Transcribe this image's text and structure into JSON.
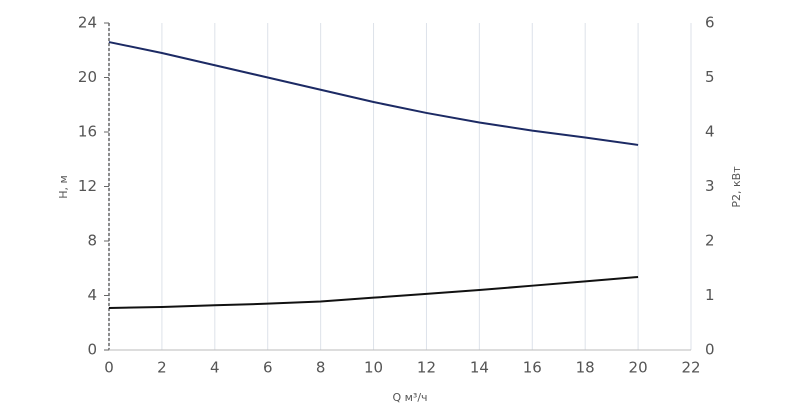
{
  "chart_data": {
    "type": "line",
    "x": [
      0,
      2,
      4,
      6,
      8,
      10,
      12,
      14,
      16,
      18,
      20
    ],
    "series": [
      {
        "name": "H",
        "color": "#1c2a64",
        "values": [
          22.6,
          21.8,
          20.9,
          20.0,
          19.1,
          18.2,
          17.4,
          16.7,
          16.1,
          15.6,
          15.05
        ]
      },
      {
        "name": "P2",
        "color": "#111111",
        "axis": "y2",
        "values": [
          0.77,
          0.79,
          0.82,
          0.85,
          0.89,
          0.96,
          1.03,
          1.1,
          1.18,
          1.26,
          1.34
        ]
      }
    ],
    "xlabel": "Q м³/ч",
    "ylabel": "H, м",
    "y2label": "P2, кВт",
    "xlim": [
      0,
      22
    ],
    "xticks": [
      0,
      2,
      4,
      6,
      8,
      10,
      12,
      14,
      16,
      18,
      20,
      22
    ],
    "ylim": [
      0,
      24
    ],
    "yticks": [
      0,
      4,
      8,
      12,
      16,
      20,
      24
    ],
    "y2lim": [
      0,
      6
    ],
    "y2ticks": [
      0,
      1,
      2,
      3,
      4,
      5,
      6
    ],
    "grid": true
  }
}
